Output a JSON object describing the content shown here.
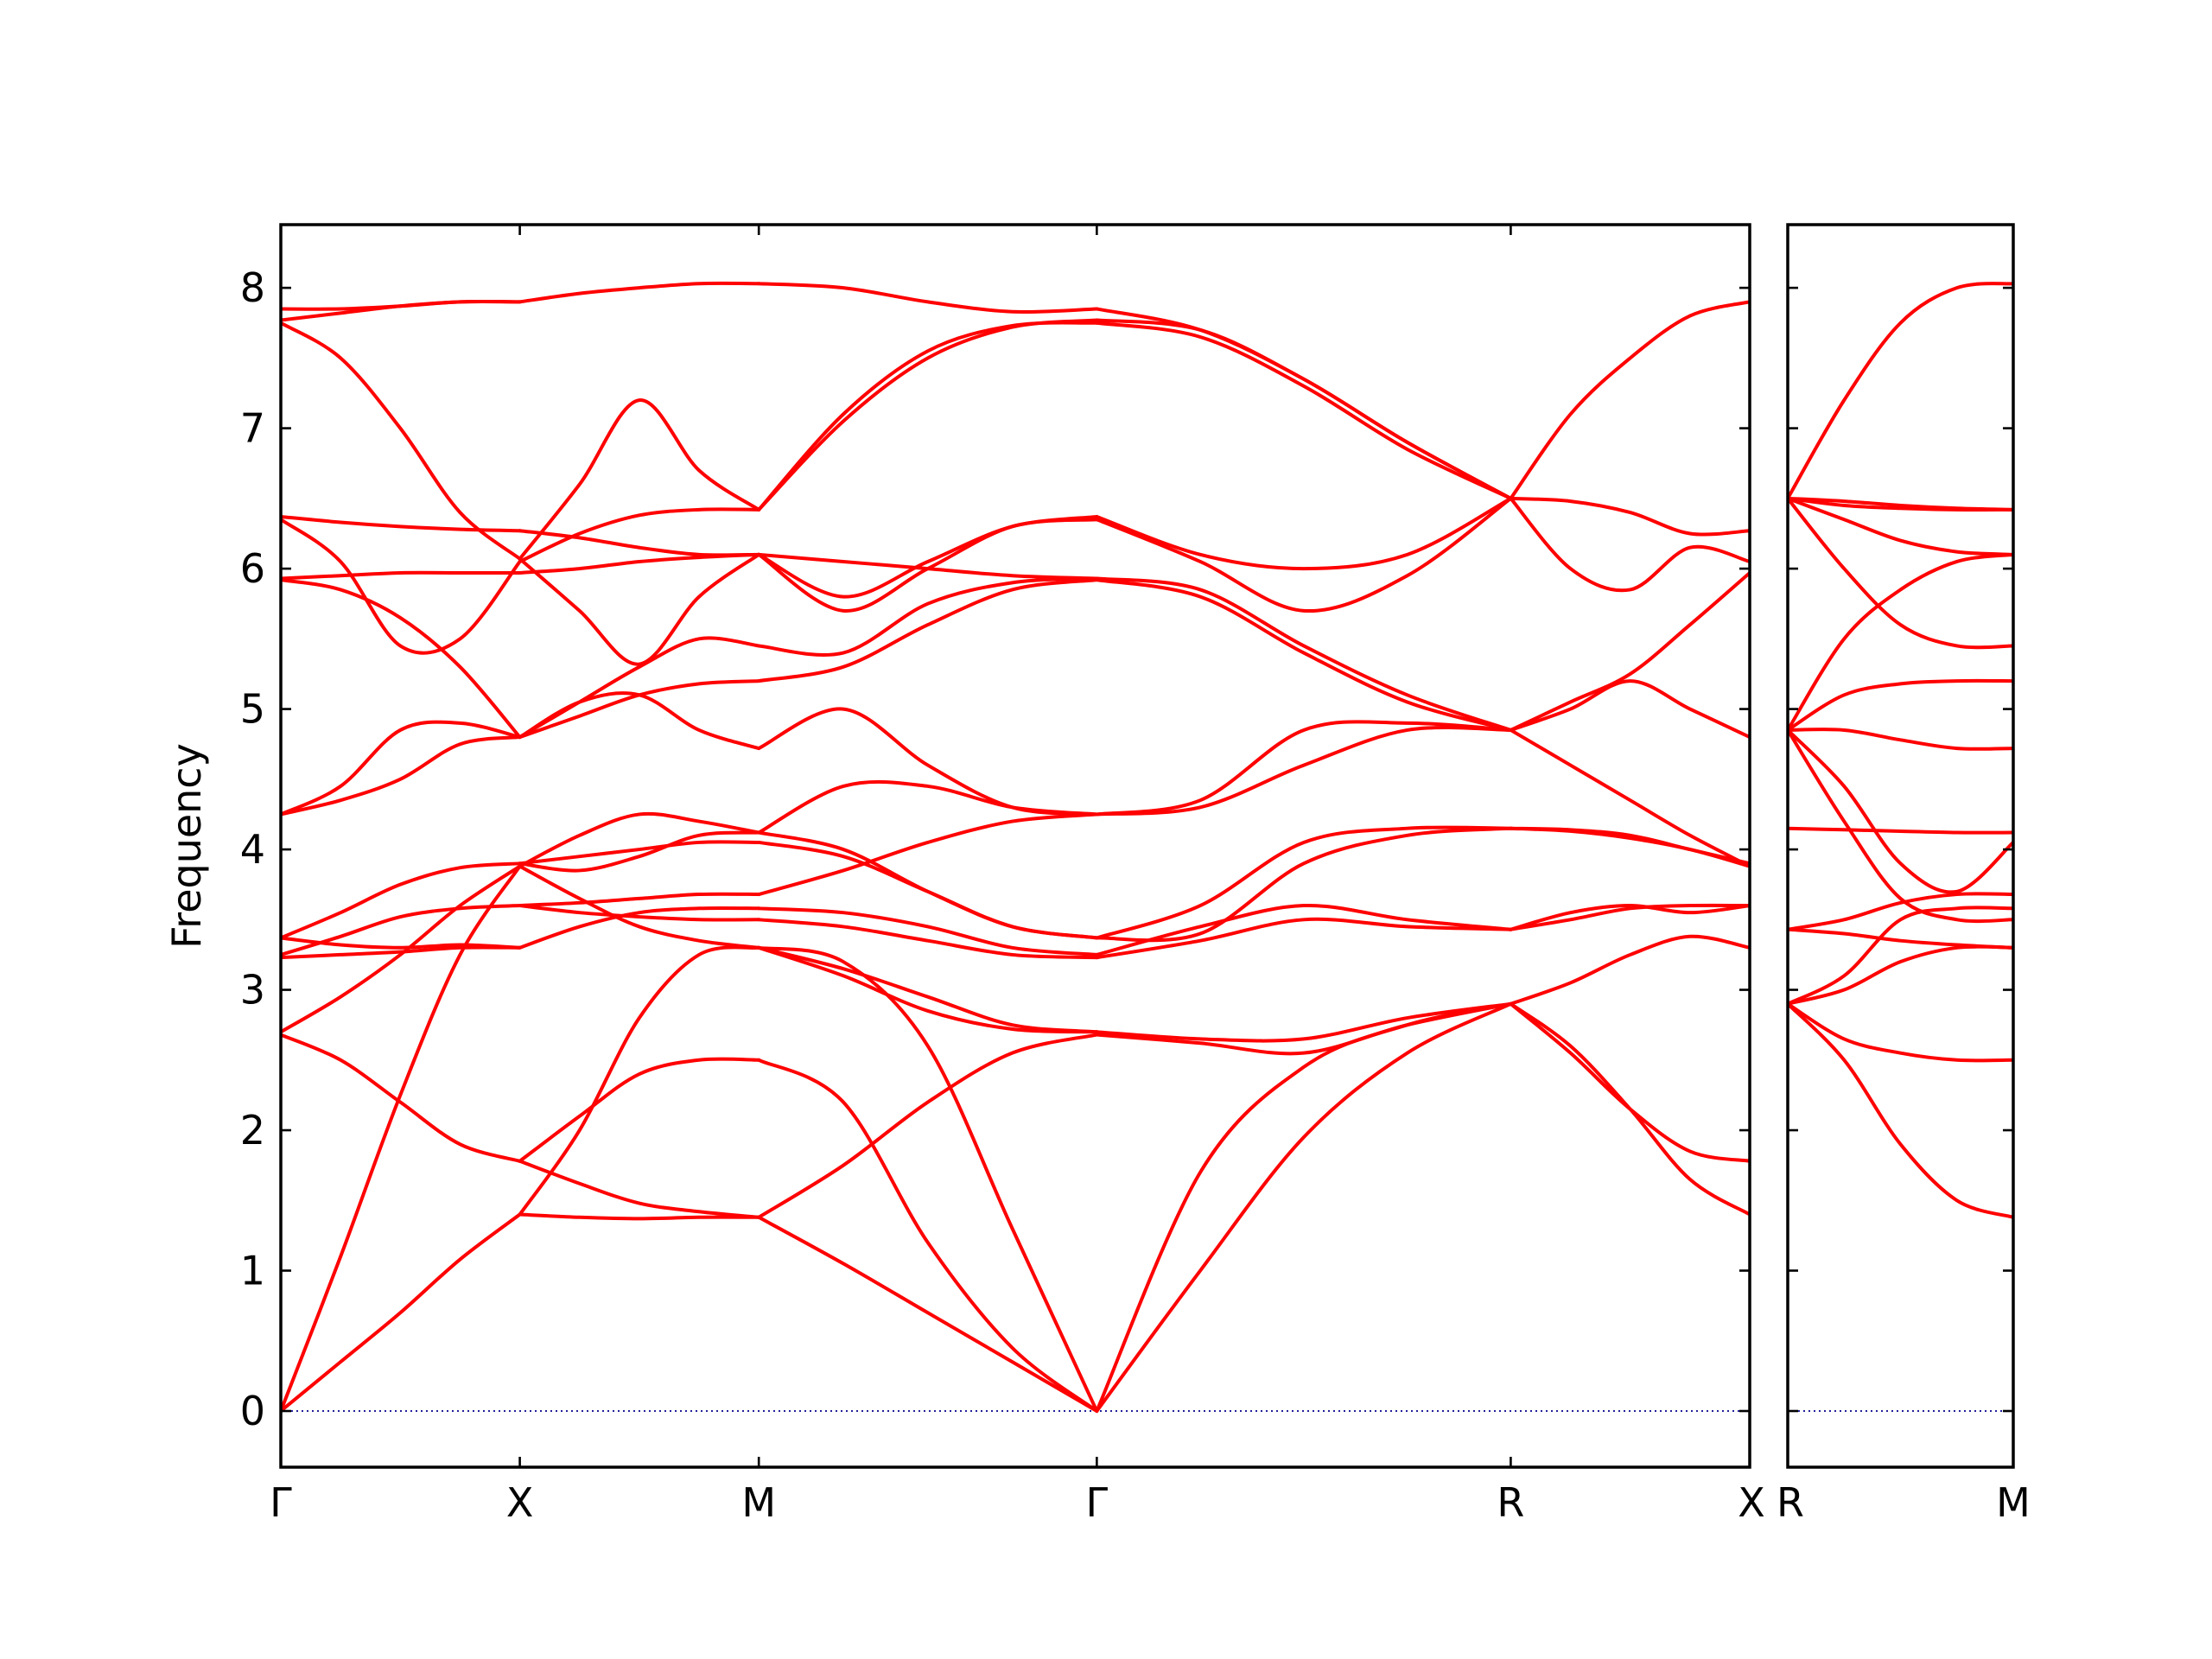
{
  "chart_data": {
    "type": "line",
    "ylabel": "Frequency",
    "xlabel": "",
    "ylim": [
      -0.4,
      8.45
    ],
    "yticks": [
      0,
      1,
      2,
      3,
      4,
      5,
      6,
      7,
      8
    ],
    "grid": false,
    "line_color": "#ff0000",
    "zero_line_color": "#00008b",
    "panels": [
      {
        "path_labels": [
          "Γ",
          "X",
          "M",
          "Γ",
          "R",
          "X"
        ],
        "label_x": [
          0,
          0.5,
          1.0,
          1.7071,
          2.5731,
          3.0731
        ],
        "segments": [
          {
            "from": "Γ",
            "to": "X",
            "x": [
              0,
              0.125,
              0.25,
              0.375,
              0.5
            ],
            "bands": [
              [
                0.0,
                0.35,
                0.7,
                1.08,
                1.4
              ],
              [
                0.0,
                1.1,
                2.25,
                3.25,
                3.88
              ],
              [
                2.68,
                2.5,
                2.2,
                1.9,
                1.78
              ],
              [
                2.7,
                2.95,
                3.25,
                3.6,
                3.88
              ],
              [
                3.23,
                3.25,
                3.27,
                3.3,
                3.3
              ],
              [
                3.25,
                3.38,
                3.52,
                3.58,
                3.6
              ],
              [
                3.37,
                3.55,
                3.75,
                3.87,
                3.9
              ],
              [
                3.37,
                3.32,
                3.3,
                3.32,
                3.3
              ],
              [
                4.25,
                4.35,
                4.5,
                4.75,
                4.8
              ],
              [
                4.25,
                4.45,
                4.85,
                4.9,
                4.8
              ],
              [
                5.92,
                5.85,
                5.65,
                5.3,
                4.8
              ],
              [
                5.93,
                5.95,
                5.97,
                5.97,
                5.97
              ],
              [
                6.35,
                6.05,
                5.45,
                5.5,
                6.05
              ],
              [
                6.37,
                6.33,
                6.3,
                6.28,
                6.27
              ],
              [
                7.75,
                7.5,
                7.0,
                6.4,
                6.07
              ],
              [
                7.77,
                7.82,
                7.87,
                7.9,
                7.9
              ],
              [
                7.85,
                7.85,
                7.87,
                7.9,
                7.9
              ]
            ]
          },
          {
            "from": "X",
            "to": "M",
            "x": [
              0.5,
              0.625,
              0.75,
              0.875,
              1.0
            ],
            "bands": [
              [
                1.4,
                1.38,
                1.37,
                1.38,
                1.38
              ],
              [
                1.78,
                1.62,
                1.48,
                1.42,
                1.38
              ],
              [
                1.78,
                2.1,
                2.4,
                2.5,
                2.5
              ],
              [
                1.4,
                2.0,
                2.8,
                3.25,
                3.3
              ],
              [
                3.88,
                3.65,
                3.45,
                3.35,
                3.3
              ],
              [
                3.9,
                3.85,
                3.95,
                4.1,
                4.12
              ],
              [
                3.88,
                4.1,
                4.25,
                4.2,
                4.12
              ],
              [
                3.9,
                3.95,
                4.0,
                4.05,
                4.05
              ],
              [
                3.6,
                3.62,
                3.65,
                3.68,
                3.68
              ],
              [
                3.3,
                3.45,
                3.55,
                3.58,
                3.58
              ],
              [
                3.6,
                3.55,
                3.52,
                3.5,
                3.5
              ],
              [
                4.8,
                4.95,
                5.1,
                5.18,
                5.2
              ],
              [
                4.8,
                5.05,
                5.1,
                4.85,
                4.72
              ],
              [
                4.8,
                5.05,
                5.3,
                5.5,
                5.45
              ],
              [
                5.97,
                6.0,
                6.05,
                6.08,
                6.1
              ],
              [
                6.07,
                5.7,
                5.32,
                5.8,
                6.1
              ],
              [
                6.05,
                6.25,
                6.38,
                6.42,
                6.42
              ],
              [
                6.27,
                6.22,
                6.15,
                6.1,
                6.1
              ],
              [
                6.07,
                6.6,
                7.2,
                6.7,
                6.42
              ],
              [
                7.9,
                7.96,
                8.0,
                8.03,
                8.03
              ]
            ]
          },
          {
            "from": "M",
            "to": "Γ",
            "x": [
              1.0,
              1.1768,
              1.3536,
              1.5303,
              1.7071
            ],
            "bands": [
              [
                1.38,
                1.05,
                0.7,
                0.35,
                0.0
              ],
              [
                2.5,
                2.2,
                1.2,
                0.45,
                0.0
              ],
              [
                1.38,
                1.75,
                2.2,
                2.55,
                2.68
              ],
              [
                3.3,
                3.2,
                2.6,
                1.3,
                0.0
              ],
              [
                3.3,
                3.1,
                2.85,
                2.72,
                2.7
              ],
              [
                3.3,
                3.15,
                2.95,
                2.75,
                2.7
              ],
              [
                3.5,
                3.45,
                3.35,
                3.25,
                3.23
              ],
              [
                3.58,
                3.55,
                3.45,
                3.3,
                3.25
              ],
              [
                3.68,
                3.85,
                4.05,
                4.2,
                4.25
              ],
              [
                4.05,
                3.95,
                3.7,
                3.45,
                3.37
              ],
              [
                4.12,
                4.0,
                3.7,
                3.45,
                3.37
              ],
              [
                4.12,
                4.45,
                4.45,
                4.3,
                4.25
              ],
              [
                4.72,
                5.0,
                4.6,
                4.3,
                4.25
              ],
              [
                5.2,
                5.3,
                5.6,
                5.85,
                5.92
              ],
              [
                5.45,
                5.4,
                5.75,
                5.9,
                5.93
              ],
              [
                6.1,
                5.7,
                6.0,
                6.3,
                6.35
              ],
              [
                6.1,
                5.8,
                6.05,
                6.3,
                6.37
              ],
              [
                6.1,
                6.05,
                6.0,
                5.95,
                5.93
              ],
              [
                6.42,
                7.1,
                7.55,
                7.73,
                7.75
              ],
              [
                6.42,
                7.05,
                7.5,
                7.72,
                7.77
              ],
              [
                8.03,
                8.0,
                7.9,
                7.83,
                7.85
              ]
            ]
          },
          {
            "from": "Γ",
            "to": "R",
            "x": [
              1.7071,
              1.9236,
              2.1401,
              2.3566,
              2.5731
            ],
            "bands": [
              [
                0.0,
                1.0,
                1.95,
                2.55,
                2.9
              ],
              [
                0.0,
                1.7,
                2.45,
                2.75,
                2.9
              ],
              [
                2.68,
                2.62,
                2.55,
                2.75,
                2.9
              ],
              [
                2.7,
                2.65,
                2.65,
                2.8,
                2.9
              ],
              [
                3.23,
                3.35,
                3.5,
                3.45,
                3.43
              ],
              [
                3.25,
                3.45,
                3.6,
                3.5,
                3.43
              ],
              [
                3.37,
                3.6,
                4.05,
                4.15,
                4.15
              ],
              [
                3.37,
                3.4,
                3.9,
                4.1,
                4.15
              ],
              [
                4.25,
                4.3,
                4.6,
                4.85,
                4.85
              ],
              [
                4.25,
                4.35,
                4.85,
                4.9,
                4.85
              ],
              [
                5.92,
                5.8,
                5.4,
                5.05,
                4.85
              ],
              [
                5.93,
                5.85,
                5.45,
                5.1,
                4.85
              ],
              [
                6.35,
                6.05,
                5.7,
                5.95,
                6.5
              ],
              [
                6.37,
                6.1,
                6.0,
                6.1,
                6.5
              ],
              [
                7.75,
                7.65,
                7.3,
                6.85,
                6.5
              ],
              [
                7.77,
                7.7,
                7.35,
                6.9,
                6.5
              ],
              [
                7.85,
                7.7,
                7.35,
                6.9,
                6.5
              ]
            ]
          },
          {
            "from": "R",
            "to": "X",
            "x": [
              2.5731,
              2.6981,
              2.8231,
              2.9481,
              3.0731
            ],
            "bands": [
              [
                2.9,
                2.55,
                2.15,
                1.85,
                1.78
              ],
              [
                2.9,
                2.6,
                2.15,
                1.65,
                1.4
              ],
              [
                2.9,
                3.05,
                3.25,
                3.38,
                3.3
              ],
              [
                3.43,
                3.5,
                3.58,
                3.6,
                3.6
              ],
              [
                3.43,
                3.55,
                3.6,
                3.55,
                3.6
              ],
              [
                4.15,
                4.13,
                4.08,
                4.0,
                3.88
              ],
              [
                4.15,
                4.14,
                4.1,
                4.0,
                3.9
              ],
              [
                4.85,
                5.0,
                5.2,
                5.0,
                4.8
              ],
              [
                4.85,
                4.6,
                4.35,
                4.1,
                3.88
              ],
              [
                4.85,
                5.05,
                5.25,
                5.6,
                5.97
              ],
              [
                6.5,
                6.0,
                5.85,
                6.15,
                6.05
              ],
              [
                6.5,
                6.48,
                6.4,
                6.25,
                6.27
              ],
              [
                6.5,
                7.1,
                7.5,
                7.8,
                7.9
              ]
            ]
          }
        ]
      },
      {
        "path_labels": [
          "R",
          "M"
        ],
        "label_x": [
          0,
          0.6124
        ],
        "segments": [
          {
            "from": "R",
            "to": "M",
            "x": [
              0,
              0.1531,
              0.3062,
              0.4593,
              0.6124
            ],
            "bands": [
              [
                2.9,
                2.5,
                1.9,
                1.5,
                1.38
              ],
              [
                2.9,
                2.65,
                2.55,
                2.5,
                2.5
              ],
              [
                2.9,
                3.0,
                3.2,
                3.3,
                3.3
              ],
              [
                2.9,
                3.1,
                3.5,
                3.58,
                3.58
              ],
              [
                3.43,
                3.5,
                3.62,
                3.68,
                3.68
              ],
              [
                3.43,
                3.4,
                3.35,
                3.32,
                3.3
              ],
              [
                4.15,
                4.14,
                4.13,
                4.12,
                4.12
              ],
              [
                4.85,
                4.2,
                3.65,
                3.5,
                3.5
              ],
              [
                4.85,
                4.45,
                3.9,
                3.7,
                4.05
              ],
              [
                4.85,
                4.85,
                4.78,
                4.72,
                4.72
              ],
              [
                4.85,
                5.1,
                5.18,
                5.2,
                5.2
              ],
              [
                4.85,
                5.5,
                5.85,
                6.05,
                6.1
              ],
              [
                6.5,
                6.0,
                5.6,
                5.45,
                5.45
              ],
              [
                6.5,
                6.35,
                6.2,
                6.12,
                6.1
              ],
              [
                6.5,
                6.45,
                6.43,
                6.42,
                6.42
              ],
              [
                6.5,
                6.48,
                6.45,
                6.43,
                6.42
              ],
              [
                6.5,
                7.2,
                7.75,
                8.0,
                8.03
              ]
            ]
          }
        ]
      }
    ]
  }
}
